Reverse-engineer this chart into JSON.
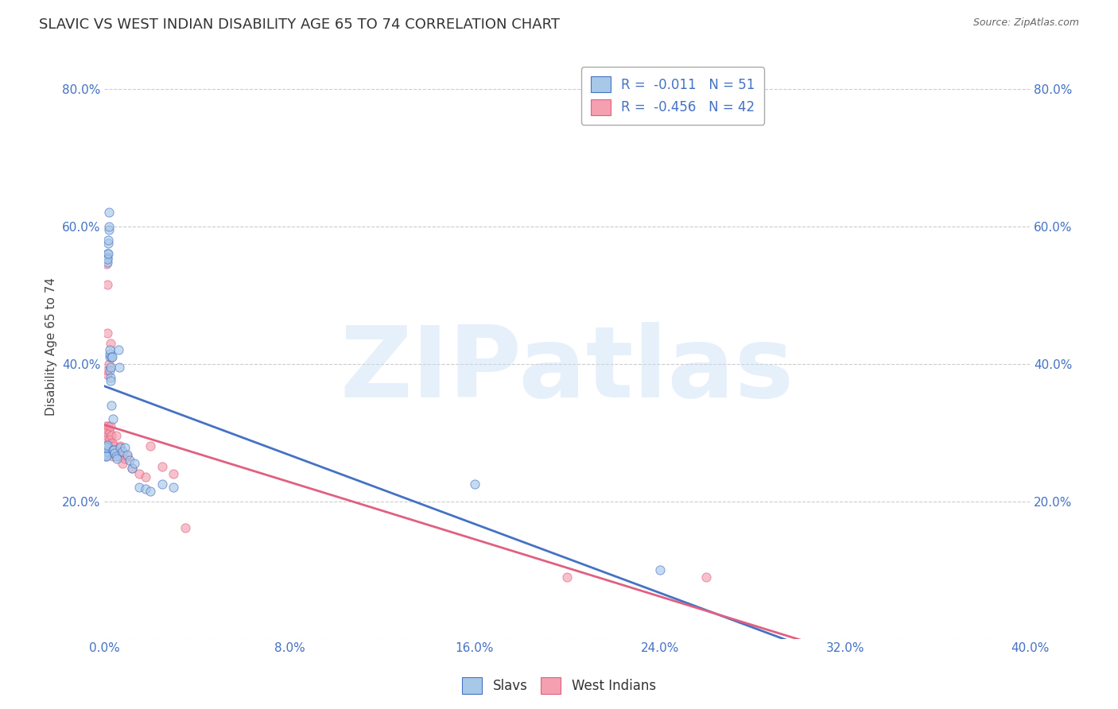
{
  "title": "SLAVIC VS WEST INDIAN DISABILITY AGE 65 TO 74 CORRELATION CHART",
  "source": "Source: ZipAtlas.com",
  "ylabel": "Disability Age 65 to 74",
  "watermark": "ZIPatlas",
  "slavs_x": [
    0.0005,
    0.0006,
    0.0007,
    0.0008,
    0.0009,
    0.001,
    0.001,
    0.0011,
    0.0012,
    0.0013,
    0.0014,
    0.0015,
    0.0015,
    0.0016,
    0.0017,
    0.0018,
    0.0019,
    0.002,
    0.0021,
    0.0022,
    0.0023,
    0.0024,
    0.0025,
    0.0026,
    0.0027,
    0.0028,
    0.003,
    0.0032,
    0.0034,
    0.0036,
    0.0038,
    0.004,
    0.0045,
    0.005,
    0.0055,
    0.006,
    0.0065,
    0.007,
    0.008,
    0.009,
    0.01,
    0.011,
    0.012,
    0.013,
    0.015,
    0.018,
    0.02,
    0.025,
    0.03,
    0.16,
    0.24
  ],
  "slavs_y": [
    0.265,
    0.27,
    0.275,
    0.268,
    0.272,
    0.28,
    0.265,
    0.278,
    0.282,
    0.56,
    0.555,
    0.548,
    0.552,
    0.56,
    0.575,
    0.58,
    0.595,
    0.6,
    0.62,
    0.39,
    0.41,
    0.415,
    0.42,
    0.38,
    0.395,
    0.375,
    0.34,
    0.41,
    0.41,
    0.32,
    0.275,
    0.275,
    0.27,
    0.265,
    0.262,
    0.42,
    0.395,
    0.278,
    0.272,
    0.278,
    0.268,
    0.26,
    0.248,
    0.255,
    0.22,
    0.218,
    0.215,
    0.225,
    0.22,
    0.225,
    0.1
  ],
  "west_indians_x": [
    0.0005,
    0.0006,
    0.0007,
    0.0008,
    0.0009,
    0.001,
    0.0011,
    0.0012,
    0.0013,
    0.0014,
    0.0015,
    0.0016,
    0.0017,
    0.0018,
    0.002,
    0.0022,
    0.0024,
    0.0026,
    0.0028,
    0.003,
    0.0032,
    0.0035,
    0.0038,
    0.004,
    0.0045,
    0.005,
    0.0055,
    0.006,
    0.0065,
    0.007,
    0.008,
    0.009,
    0.01,
    0.012,
    0.015,
    0.018,
    0.02,
    0.025,
    0.03,
    0.035,
    0.2,
    0.26
  ],
  "west_indians_y": [
    0.295,
    0.3,
    0.31,
    0.285,
    0.305,
    0.29,
    0.545,
    0.515,
    0.445,
    0.385,
    0.39,
    0.27,
    0.275,
    0.31,
    0.4,
    0.3,
    0.29,
    0.43,
    0.31,
    0.295,
    0.275,
    0.285,
    0.265,
    0.28,
    0.27,
    0.295,
    0.275,
    0.265,
    0.27,
    0.28,
    0.255,
    0.262,
    0.265,
    0.248,
    0.24,
    0.235,
    0.28,
    0.25,
    0.24,
    0.162,
    0.09,
    0.09
  ],
  "slavs_color": "#a8c8e8",
  "west_indians_color": "#f4a0b0",
  "slavs_line_color": "#4472c4",
  "west_indians_line_color": "#e06080",
  "R_slavs": -0.011,
  "N_slavs": 51,
  "R_west_indians": -0.456,
  "N_west_indians": 42,
  "xlim": [
    0.0,
    0.4
  ],
  "ylim": [
    0.0,
    0.85
  ],
  "xticks": [
    0.0,
    0.08,
    0.16,
    0.24,
    0.32,
    0.4
  ],
  "xticklabels": [
    "0.0%",
    "8.0%",
    "16.0%",
    "24.0%",
    "32.0%",
    "40.0%"
  ],
  "yticks": [
    0.0,
    0.2,
    0.4,
    0.6,
    0.8
  ],
  "yticklabels": [
    "",
    "20.0%",
    "40.0%",
    "60.0%",
    "80.0%"
  ],
  "grid_color": "#cccccc",
  "background_color": "#ffffff",
  "title_fontsize": 13,
  "axis_label_fontsize": 11,
  "tick_fontsize": 11,
  "legend_fontsize": 12,
  "marker_size": 65,
  "marker_alpha": 0.65
}
